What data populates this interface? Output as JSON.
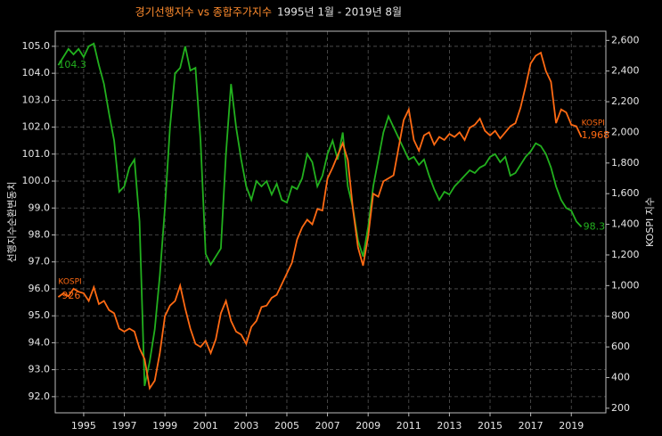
{
  "chart_data": {
    "type": "line",
    "title": "경기선행지수 vs 종합주가지수",
    "subtitle": "1995년 1월 - 2019년 8월",
    "y_label": "선행지수순환변동치",
    "y2_label": "KOSPI 지수",
    "grid": true,
    "xlim": [
      1993.6,
      2020.7
    ],
    "ylim": [
      91.4,
      105.56
    ],
    "y2lim": [
      170,
      2660
    ],
    "xticks": [
      1995,
      1997,
      1999,
      2001,
      2003,
      2005,
      2007,
      2009,
      2011,
      2013,
      2015,
      2017,
      2019
    ],
    "yticks": [
      {
        "value": 92,
        "label": "92.0"
      },
      {
        "value": 93,
        "label": "93.0"
      },
      {
        "value": 94,
        "label": "94.0"
      },
      {
        "value": 95,
        "label": "95.0"
      },
      {
        "value": 96,
        "label": "96.0"
      },
      {
        "value": 97,
        "label": "97.0"
      },
      {
        "value": 98,
        "label": "98.0"
      },
      {
        "value": 99,
        "label": "99.0"
      },
      {
        "value": 100,
        "label": "100.0"
      },
      {
        "value": 101,
        "label": "101.0"
      },
      {
        "value": 102,
        "label": "102.0"
      },
      {
        "value": 103,
        "label": "103.0"
      },
      {
        "value": 104,
        "label": "104.0"
      },
      {
        "value": 105,
        "label": "105.0"
      }
    ],
    "y2ticks": [
      200,
      400,
      600,
      800,
      {
        "value": 1000,
        "label": "1,000"
      },
      {
        "value": 1200,
        "label": "1,200"
      },
      {
        "value": 1400,
        "label": "1,400"
      },
      {
        "value": 1600,
        "label": "1,600"
      },
      {
        "value": 1800,
        "label": "1,800"
      },
      {
        "value": 2000,
        "label": "2,000"
      },
      {
        "value": 2200,
        "label": "2,200"
      },
      {
        "value": 2400,
        "label": "2,400"
      },
      {
        "value": 2600,
        "label": "2,600"
      }
    ],
    "x": [
      1993.75,
      1994,
      1994.25,
      1994.5,
      1994.75,
      1995,
      1995.25,
      1995.5,
      1995.75,
      1996,
      1996.25,
      1996.5,
      1996.75,
      1997,
      1997.25,
      1997.5,
      1997.75,
      1998,
      1998.25,
      1998.5,
      1998.75,
      1999,
      1999.25,
      1999.5,
      1999.75,
      2000,
      2000.25,
      2000.5,
      2000.75,
      2001,
      2001.25,
      2001.5,
      2001.75,
      2002,
      2002.25,
      2002.5,
      2002.75,
      2003,
      2003.25,
      2003.5,
      2003.75,
      2004,
      2004.25,
      2004.5,
      2004.75,
      2005,
      2005.25,
      2005.5,
      2005.75,
      2006,
      2006.25,
      2006.5,
      2006.75,
      2007,
      2007.25,
      2007.5,
      2007.75,
      2008,
      2008.25,
      2008.5,
      2008.75,
      2009,
      2009.25,
      2009.5,
      2009.75,
      2010,
      2010.25,
      2010.5,
      2010.75,
      2011,
      2011.25,
      2011.5,
      2011.75,
      2012,
      2012.25,
      2012.5,
      2012.75,
      2013,
      2013.25,
      2013.5,
      2013.75,
      2014,
      2014.25,
      2014.5,
      2014.75,
      2015,
      2015.25,
      2015.5,
      2015.75,
      2016,
      2016.25,
      2016.5,
      2016.75,
      2017,
      2017.25,
      2017.5,
      2017.75,
      2018,
      2018.25,
      2018.5,
      2018.75,
      2019,
      2019.25,
      2019.5
    ],
    "series": [
      {
        "name": "경기선행지수",
        "color": "#22b01e",
        "values": [
          104.3,
          104.6,
          104.9,
          104.7,
          104.9,
          104.6,
          105.0,
          105.1,
          104.3,
          103.6,
          102.5,
          101.5,
          99.6,
          99.8,
          100.5,
          100.8,
          98.5,
          92.4,
          93.3,
          94.5,
          96.5,
          99.0,
          102.0,
          104.0,
          104.2,
          105.0,
          104.1,
          104.2,
          101.5,
          97.3,
          96.9,
          97.2,
          97.5,
          101.0,
          103.6,
          102.0,
          100.8,
          99.8,
          99.3,
          100.0,
          99.8,
          100.0,
          99.5,
          99.9,
          99.3,
          99.2,
          99.8,
          99.7,
          100.1,
          101.0,
          100.7,
          99.8,
          100.2,
          101.0,
          101.5,
          100.8,
          101.8,
          99.8,
          99.0,
          97.8,
          97.2,
          98.3,
          99.8,
          100.8,
          101.8,
          102.4,
          102.0,
          101.6,
          101.2,
          100.8,
          100.9,
          100.6,
          100.8,
          100.2,
          99.7,
          99.3,
          99.6,
          99.5,
          99.8,
          100.0,
          100.2,
          100.4,
          100.3,
          100.5,
          100.6,
          100.9,
          101.0,
          100.7,
          100.9,
          100.2,
          100.3,
          100.6,
          100.9,
          101.1,
          101.4,
          101.3,
          101.0,
          100.5,
          99.8,
          99.3,
          99.0,
          98.9,
          98.5,
          98.3
        ]
      },
      {
        "name": "KOSPI",
        "color": "#ff6a13",
        "axis": "y2",
        "values": [
          926,
          950,
          930,
          980,
          960,
          950,
          900,
          990,
          880,
          900,
          840,
          820,
          720,
          700,
          720,
          700,
          590,
          520,
          330,
          380,
          560,
          800,
          870,
          900,
          1000,
          850,
          720,
          620,
          600,
          640,
          560,
          650,
          820,
          900,
          770,
          700,
          680,
          620,
          730,
          770,
          860,
          870,
          920,
          940,
          1010,
          1080,
          1150,
          1300,
          1380,
          1430,
          1400,
          1500,
          1490,
          1700,
          1770,
          1850,
          1930,
          1820,
          1500,
          1250,
          1130,
          1320,
          1600,
          1580,
          1680,
          1700,
          1720,
          1900,
          2080,
          2150,
          1950,
          1880,
          1980,
          2000,
          1920,
          1970,
          1950,
          1990,
          1970,
          2000,
          1950,
          2030,
          2050,
          2090,
          2010,
          1980,
          2010,
          1960,
          2000,
          2040,
          2060,
          2160,
          2300,
          2450,
          2500,
          2520,
          2400,
          2330,
          2060,
          2150,
          2130,
          2050,
          2040,
          1968
        ]
      }
    ],
    "annotations": [
      "104.3",
      "98.3",
      "KOSPI",
      "926",
      "KOSPI",
      "1,968"
    ]
  }
}
